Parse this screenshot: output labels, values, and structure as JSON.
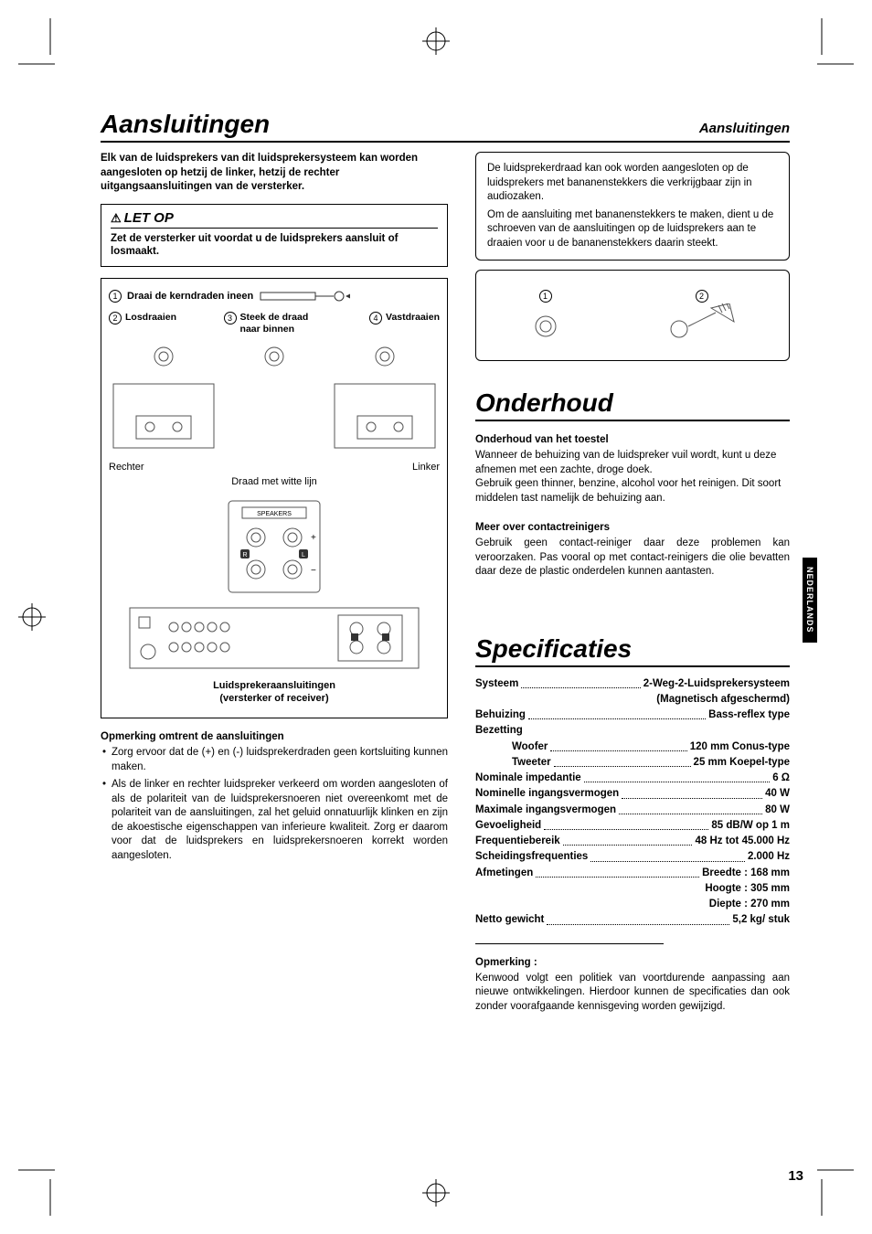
{
  "page_number": "13",
  "language_tab": "NEDERLANDS",
  "header": {
    "title": "Aansluitingen",
    "subtitle": "Aansluitingen"
  },
  "intro": "Elk van de luidsprekers van dit luidsprekersysteem kan worden aangesloten op hetzij de linker, hetzij de rechter uitgangsaansluitingen van de versterker.",
  "warning": {
    "title": "LET OP",
    "body": "Zet de versterker uit voordat u de luidsprekers aansluit of losmaakt."
  },
  "steps": {
    "s1": "Draai de kerndraden ineen",
    "s2": "Losdraaien",
    "s3": "Steek de draad naar binnen",
    "s4": "Vastdraaien"
  },
  "diagram_labels": {
    "right": "Rechter",
    "left": "Linker",
    "white_line": "Draad met witte lijn",
    "speakers_panel": "SPEAKERS",
    "caption_l1": "Luidsprekeraansluitingen",
    "caption_l2": "(versterker of receiver)"
  },
  "notes": {
    "heading": "Opmerking omtrent de aansluitingen",
    "b1": "Zorg ervoor dat de (+) en (-) luidsprekerdraden geen kortsluiting kunnen maken.",
    "b2": "Als de linker en rechter luidspreker verkeerd om worden aangesloten of als de polariteit van de luidsprekersnoeren niet overeenkomt met de polariteit van de aansluitingen, zal het geluid onnatuurlijk klinken en zijn de akoestische eigenschappen van inferieure kwaliteit. Zorg er daarom voor dat de luidsprekers en luidsprekersnoeren korrekt worden aangesloten."
  },
  "banana": {
    "p1": "De luidsprekerdraad kan ook worden aangesloten op de luidsprekers met bananenstekkers die verkrijgbaar zijn in audiozaken.",
    "p2": "Om de aansluiting met bananenstekkers te maken, dient u de schroeven van de aansluitingen op de luidsprekers aan te draaien voor u de bananenstekkers daarin steekt."
  },
  "maintenance": {
    "title": "Onderhoud",
    "h1": "Onderhoud van het toestel",
    "p1": "Wanneer de behuizing van de luidspreker vuil wordt, kunt u deze afnemen met een zachte, droge doek.",
    "p2": "Gebruik geen thinner, benzine, alcohol voor het reinigen. Dit soort middelen tast namelijk de behuizing aan.",
    "h2": "Meer over contactreinigers",
    "p3": "Gebruik geen contact-reiniger daar deze problemen kan veroorzaken. Pas vooral op met contact-reinigers die olie bevatten daar deze de plastic onderdelen kunnen aantasten."
  },
  "specs": {
    "title": "Specificaties",
    "rows": [
      {
        "label": "Systeem",
        "value": "2-Weg-2-Luidsprekersysteem"
      },
      {
        "label": "",
        "value": "(Magnetisch afgeschermd)",
        "right_only": true
      },
      {
        "label": "Behuizing",
        "value": "Bass-reflex type"
      },
      {
        "label": "Bezetting",
        "value": "",
        "no_dots": true
      },
      {
        "label": "Woofer",
        "value": "120 mm Conus-type",
        "indent": true
      },
      {
        "label": "Tweeter",
        "value": "25 mm Koepel-type",
        "indent": true
      },
      {
        "label": "Nominale impedantie",
        "value": "6 Ω"
      },
      {
        "label": "Nominelle ingangsvermogen",
        "value": "40 W"
      },
      {
        "label": "Maximale ingangsvermogen",
        "value": "80 W"
      },
      {
        "label": "Gevoeligheid",
        "value": "85 dB/W op 1 m"
      },
      {
        "label": "Frequentiebereik",
        "value": "48 Hz tot 45.000 Hz"
      },
      {
        "label": "Scheidingsfrequenties",
        "value": "2.000 Hz"
      },
      {
        "label": "Afmetingen",
        "value": "Breedte : 168 mm"
      },
      {
        "label": "",
        "value": "Hoogte : 305 mm",
        "right_only": true
      },
      {
        "label": "",
        "value": "Diepte : 270 mm",
        "right_only": true
      },
      {
        "label": "Netto gewicht",
        "value": "5,2 kg/ stuk"
      }
    ],
    "footer_h": "Opmerking :",
    "footer_p": "Kenwood volgt een politiek van voortdurende aanpassing aan nieuwe ontwikkelingen. Hierdoor kunnen de specificaties dan ook zonder voorafgaande kennisgeving worden gewijzigd."
  },
  "colors": {
    "text": "#000000",
    "bg": "#ffffff"
  }
}
